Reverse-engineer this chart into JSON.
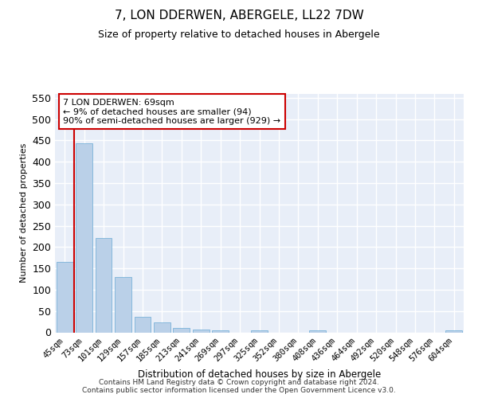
{
  "title": "7, LON DDERWEN, ABERGELE, LL22 7DW",
  "subtitle": "Size of property relative to detached houses in Abergele",
  "xlabel": "Distribution of detached houses by size in Abergele",
  "ylabel": "Number of detached properties",
  "categories": [
    "45sqm",
    "73sqm",
    "101sqm",
    "129sqm",
    "157sqm",
    "185sqm",
    "213sqm",
    "241sqm",
    "269sqm",
    "297sqm",
    "325sqm",
    "352sqm",
    "380sqm",
    "408sqm",
    "436sqm",
    "464sqm",
    "492sqm",
    "520sqm",
    "548sqm",
    "576sqm",
    "604sqm"
  ],
  "values": [
    165,
    443,
    222,
    130,
    37,
    24,
    10,
    6,
    5,
    0,
    4,
    0,
    0,
    5,
    0,
    0,
    0,
    0,
    0,
    0,
    5
  ],
  "bar_color": "#bad0e8",
  "bar_edgecolor": "#6aaad4",
  "vline_color": "#cc0000",
  "annotation_text": "7 LON DDERWEN: 69sqm\n← 9% of detached houses are smaller (94)\n90% of semi-detached houses are larger (929) →",
  "annotation_box_color": "#ffffff",
  "annotation_box_edgecolor": "#cc0000",
  "ylim": [
    0,
    560
  ],
  "yticks": [
    0,
    50,
    100,
    150,
    200,
    250,
    300,
    350,
    400,
    450,
    500,
    550
  ],
  "background_color": "#e8eef8",
  "grid_color": "#ffffff",
  "title_fontsize": 11,
  "subtitle_fontsize": 9,
  "footer": "Contains HM Land Registry data © Crown copyright and database right 2024.\nContains public sector information licensed under the Open Government Licence v3.0."
}
